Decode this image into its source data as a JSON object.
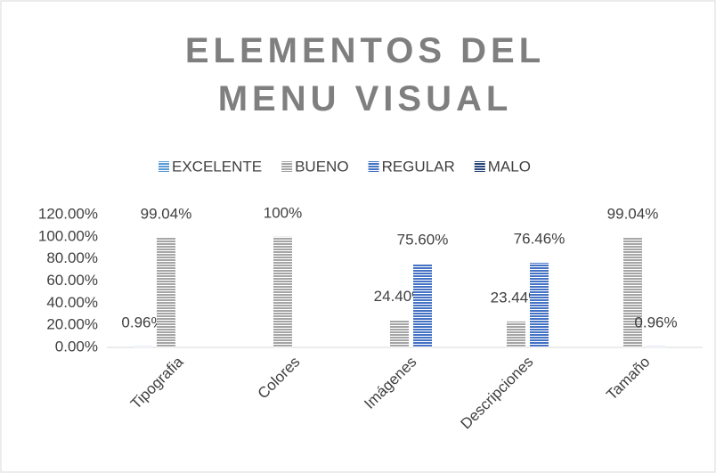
{
  "chart_data": {
    "type": "bar",
    "title": "ELEMENTOS DEL MENU VISUAL",
    "categories": [
      "Tipografia",
      "Colores",
      "Imágenes",
      "Descripciones",
      "Tamaño"
    ],
    "series": [
      {
        "name": "EXCELENTE",
        "color": "#5b9bd5",
        "values": [
          0.96,
          null,
          null,
          null,
          null
        ],
        "value_labels": [
          "0.96%",
          null,
          null,
          null,
          null
        ]
      },
      {
        "name": "BUENO",
        "color": "#a5a5a5",
        "values": [
          99.04,
          100,
          24.4,
          23.44,
          99.04
        ],
        "value_labels": [
          "99.04%",
          "100%",
          "24.40%",
          "23.44%",
          "99.04%"
        ]
      },
      {
        "name": "REGULAR",
        "color": "#4472c4",
        "values": [
          null,
          null,
          75.6,
          76.46,
          0.96
        ],
        "value_labels": [
          null,
          null,
          "75.60%",
          "76.46%",
          "0.96%"
        ]
      },
      {
        "name": "MALO",
        "color": "#264478",
        "values": [
          null,
          null,
          null,
          null,
          null
        ]
      }
    ],
    "ylim": [
      0,
      120
    ],
    "yticks": [
      {
        "value": 0,
        "label": "0.00%"
      },
      {
        "value": 20,
        "label": "20.00%"
      },
      {
        "value": 40,
        "label": "40.00%"
      },
      {
        "value": 60,
        "label": "60.00%"
      },
      {
        "value": 80,
        "label": "80.00%"
      },
      {
        "value": 100,
        "label": "100.00%"
      },
      {
        "value": 120,
        "label": "120.00%"
      }
    ],
    "grid": false,
    "legend": "top"
  }
}
